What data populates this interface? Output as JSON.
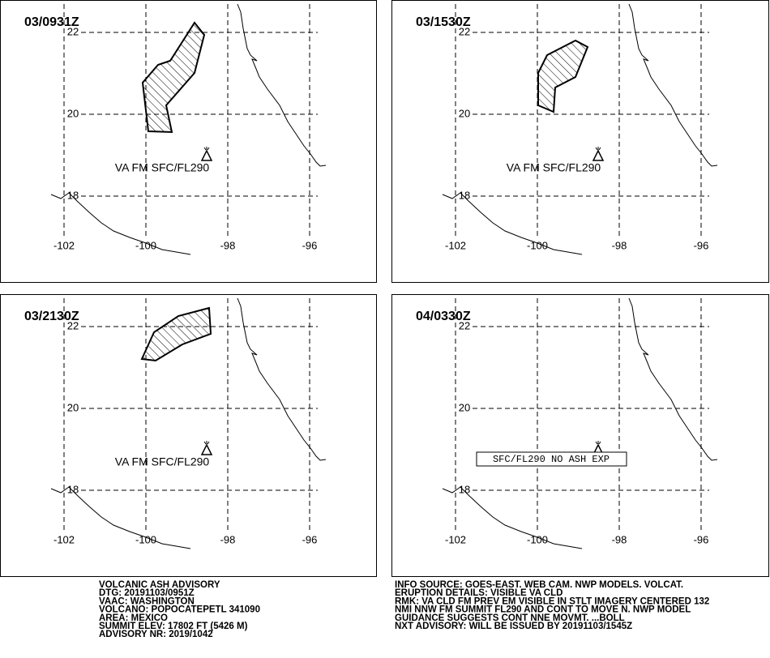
{
  "panels": [
    {
      "title": "03/0931Z",
      "annotation": "VA FM SFC/FL290"
    },
    {
      "title": "03/1530Z",
      "annotation": "VA FM SFC/FL290"
    },
    {
      "title": "03/2130Z",
      "annotation": "VA FM SFC/FL290"
    },
    {
      "title": "04/0330Z",
      "annotation": "SFC/FL290 NO ASH EXP"
    }
  ],
  "lat_ticks": [
    22,
    20,
    18
  ],
  "lon_ticks": [
    -102,
    -100,
    -98,
    -96
  ],
  "footer": {
    "left": [
      "VOLCANIC ASH ADVISORY",
      "DTG: 20191103/0951Z",
      "VAAC: WASHINGTON",
      "VOLCANO: POPOCATEPETL 341090",
      "AREA: MEXICO",
      "SUMMIT ELEV: 17802 FT (5426 M)",
      "ADVISORY NR: 2019/1042"
    ],
    "right": [
      "INFO SOURCE: GOES-EAST. WEB CAM. NWP MODELS. VOLCAT.",
      "ERUPTION DETAILS: VISIBLE VA CLD",
      "RMK: VA CLD FM PREV EM VISIBLE IN STLT IMAGERY CENTERED 132",
      "NMI NNW FM SUMMIT FL290 AND CONT TO MOVE N. NWP MODEL",
      "GUIDANCE SUGGESTS CONT NNE MOVMT. ...BOLL",
      "NXT ADVISORY: WILL BE ISSUED BY 20191103/1545Z"
    ]
  }
}
